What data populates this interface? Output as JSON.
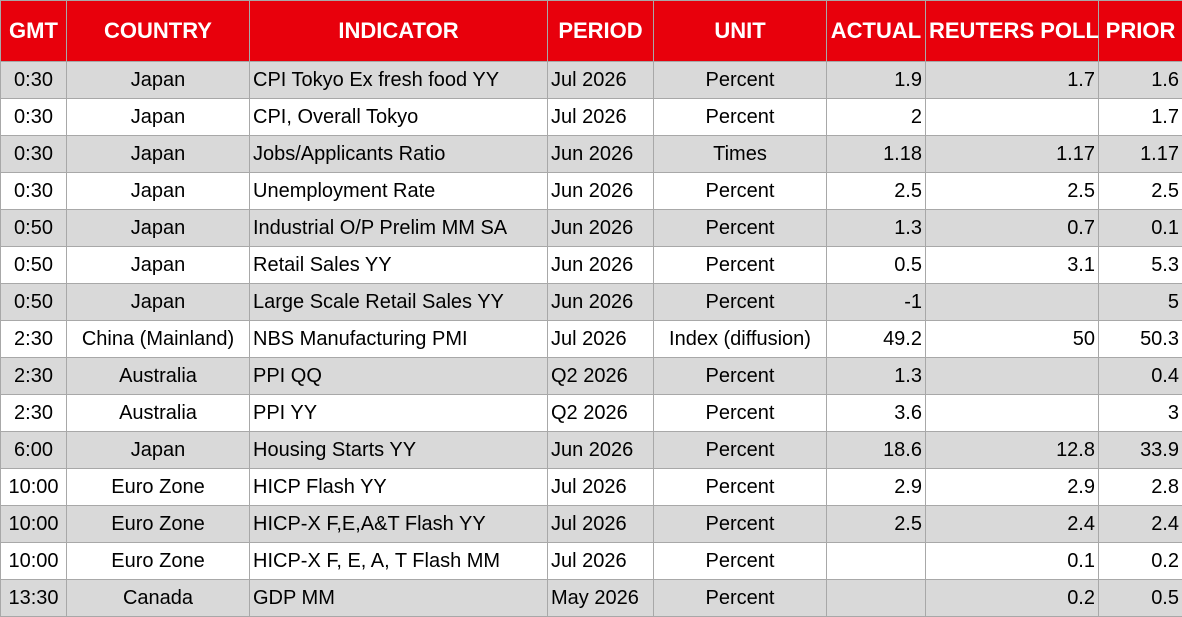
{
  "colors": {
    "header_bg": "#e8000c",
    "header_text": "#ffffff",
    "stripe_row": "#d9d9d9",
    "plain_row": "#ffffff"
  },
  "table": {
    "headers": {
      "gmt": "GMT",
      "country": "COUNTRY",
      "indicator": "INDICATOR",
      "period": "PERIOD",
      "unit": "UNIT",
      "actual": "ACTUAL",
      "poll": "REUTERS POLL",
      "prior": "PRIOR"
    },
    "rows": [
      {
        "gmt": "0:30",
        "country": "Japan",
        "indicator": "CPI Tokyo Ex fresh food YY",
        "period": "Jul 2026",
        "unit": "Percent",
        "actual": "1.9",
        "poll": "1.7",
        "prior": "1.6"
      },
      {
        "gmt": "0:30",
        "country": "Japan",
        "indicator": "CPI, Overall Tokyo",
        "period": "Jul 2026",
        "unit": "Percent",
        "actual": "2",
        "poll": "",
        "prior": "1.7"
      },
      {
        "gmt": "0:30",
        "country": "Japan",
        "indicator": "Jobs/Applicants Ratio",
        "period": "Jun 2026",
        "unit": "Times",
        "actual": "1.18",
        "poll": "1.17",
        "prior": "1.17"
      },
      {
        "gmt": "0:30",
        "country": "Japan",
        "indicator": "Unemployment Rate",
        "period": "Jun 2026",
        "unit": "Percent",
        "actual": "2.5",
        "poll": "2.5",
        "prior": "2.5"
      },
      {
        "gmt": "0:50",
        "country": "Japan",
        "indicator": "Industrial O/P Prelim MM SA",
        "period": "Jun 2026",
        "unit": "Percent",
        "actual": "1.3",
        "poll": "0.7",
        "prior": "0.1"
      },
      {
        "gmt": "0:50",
        "country": "Japan",
        "indicator": "Retail Sales YY",
        "period": "Jun 2026",
        "unit": "Percent",
        "actual": "0.5",
        "poll": "3.1",
        "prior": "5.3"
      },
      {
        "gmt": "0:50",
        "country": "Japan",
        "indicator": "Large Scale Retail Sales YY",
        "period": "Jun 2026",
        "unit": "Percent",
        "actual": "-1",
        "poll": "",
        "prior": "5"
      },
      {
        "gmt": "2:30",
        "country": "China (Mainland)",
        "indicator": "NBS Manufacturing PMI",
        "period": "Jul 2026",
        "unit": "Index (diffusion)",
        "actual": "49.2",
        "poll": "50",
        "prior": "50.3"
      },
      {
        "gmt": "2:30",
        "country": "Australia",
        "indicator": "PPI QQ",
        "period": "Q2 2026",
        "unit": "Percent",
        "actual": "1.3",
        "poll": "",
        "prior": "0.4"
      },
      {
        "gmt": "2:30",
        "country": "Australia",
        "indicator": "PPI YY",
        "period": "Q2 2026",
        "unit": "Percent",
        "actual": "3.6",
        "poll": "",
        "prior": "3"
      },
      {
        "gmt": "6:00",
        "country": "Japan",
        "indicator": "Housing Starts YY",
        "period": "Jun 2026",
        "unit": "Percent",
        "actual": "18.6",
        "poll": "12.8",
        "prior": "33.9"
      },
      {
        "gmt": "10:00",
        "country": "Euro Zone",
        "indicator": "HICP Flash YY",
        "period": "Jul 2026",
        "unit": "Percent",
        "actual": "2.9",
        "poll": "2.9",
        "prior": "2.8"
      },
      {
        "gmt": "10:00",
        "country": "Euro Zone",
        "indicator": "HICP-X F,E,A&T Flash YY",
        "period": "Jul 2026",
        "unit": "Percent",
        "actual": "2.5",
        "poll": "2.4",
        "prior": "2.4"
      },
      {
        "gmt": "10:00",
        "country": "Euro Zone",
        "indicator": "HICP-X F, E, A, T Flash MM",
        "period": "Jul 2026",
        "unit": "Percent",
        "actual": "",
        "poll": "0.1",
        "prior": "0.2"
      },
      {
        "gmt": "13:30",
        "country": "Canada",
        "indicator": "GDP MM",
        "period": "May 2026",
        "unit": "Percent",
        "actual": "",
        "poll": "0.2",
        "prior": "0.5"
      }
    ]
  }
}
